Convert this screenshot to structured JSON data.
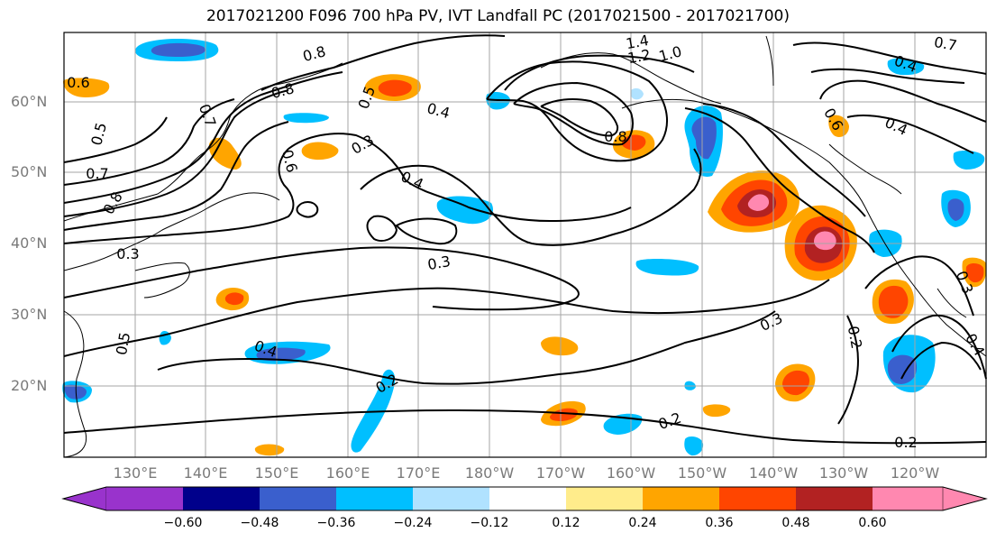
{
  "title": "2017021200 F096 700 hPa PV, IVT Landfall PC (2017021500 - 2017021700)",
  "lat_labels": [
    "60°N",
    "50°N",
    "40°N",
    "30°N",
    "20°N"
  ],
  "lon_labels": [
    "130°E",
    "140°E",
    "150°E",
    "160°E",
    "170°E",
    "180°W",
    "170°W",
    "160°W",
    "150°W",
    "140°W",
    "130°W",
    "120°W"
  ],
  "contour_labels": [
    "0.8",
    "0.8",
    "0.6",
    "0.5",
    "0.7",
    "0.6",
    "0.8",
    "0.7",
    "0.3",
    "0.3",
    "0.4",
    "0.3",
    "0.4",
    "0.2",
    "0.3",
    "0.2",
    "0.2",
    "0.4",
    "1.4",
    "1.2",
    "1.0",
    "0.8",
    "0.5",
    "0.7",
    "0.4",
    "0.4",
    "0.3",
    "0.2",
    "0.4",
    "0.5",
    "0.6"
  ],
  "colorbar": {
    "ticks": [
      "−0.60",
      "−0.48",
      "−0.36",
      "−0.24",
      "−0.12",
      "0.12",
      "0.24",
      "0.36",
      "0.48",
      "0.60"
    ],
    "colors": [
      "#9933cc",
      "#00008b",
      "#3a5fcd",
      "#00bfff",
      "#b0e2ff",
      "#ffffff",
      "#ffec8b",
      "#ffa500",
      "#ff4500",
      "#b22222",
      "#ff88b0"
    ]
  }
}
